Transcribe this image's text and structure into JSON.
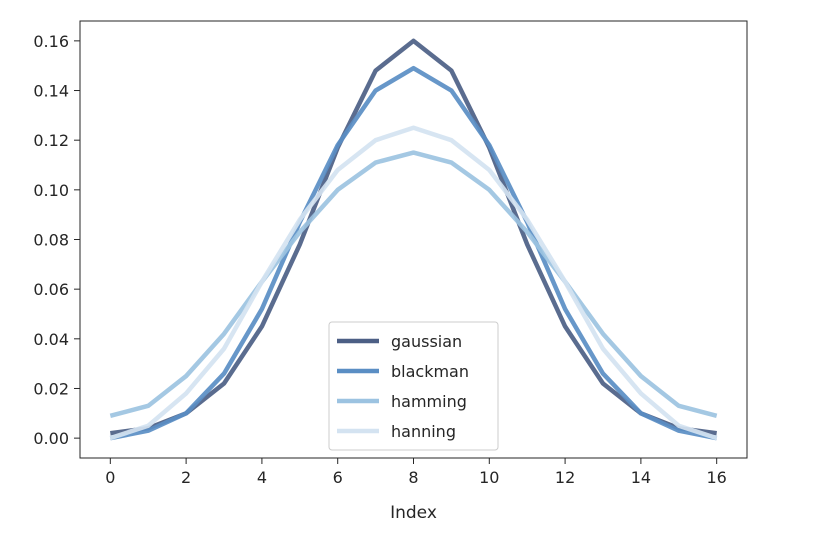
{
  "chart_data": {
    "type": "line",
    "title": "",
    "xlabel": "Index",
    "ylabel": "",
    "x": [
      0,
      1,
      2,
      3,
      4,
      5,
      6,
      7,
      8,
      9,
      10,
      11,
      12,
      13,
      14,
      15,
      16
    ],
    "xlim": [
      -0.8,
      16.8
    ],
    "ylim": [
      -0.008,
      0.168
    ],
    "xticks": [
      0,
      2,
      4,
      6,
      8,
      10,
      12,
      14,
      16
    ],
    "xtick_labels": [
      "0",
      "2",
      "4",
      "6",
      "8",
      "10",
      "12",
      "14",
      "16"
    ],
    "yticks": [
      0.0,
      0.02,
      0.04,
      0.06,
      0.08,
      0.1,
      0.12,
      0.14,
      0.16
    ],
    "ytick_labels": [
      "0.00",
      "0.02",
      "0.04",
      "0.06",
      "0.08",
      "0.10",
      "0.12",
      "0.14",
      "0.16"
    ],
    "grid": false,
    "legend_position": "bottom-center",
    "series": [
      {
        "name": "gaussian",
        "color": "#4c5f85",
        "values": [
          0.002,
          0.004,
          0.01,
          0.022,
          0.045,
          0.078,
          0.117,
          0.148,
          0.16,
          0.148,
          0.117,
          0.078,
          0.045,
          0.022,
          0.01,
          0.004,
          0.002
        ]
      },
      {
        "name": "blackman",
        "color": "#5a8ec4",
        "values": [
          0.0,
          0.003,
          0.01,
          0.026,
          0.052,
          0.087,
          0.118,
          0.14,
          0.149,
          0.14,
          0.118,
          0.087,
          0.052,
          0.026,
          0.01,
          0.003,
          0.0
        ]
      },
      {
        "name": "hamming",
        "color": "#9cc3e1",
        "values": [
          0.009,
          0.013,
          0.025,
          0.042,
          0.063,
          0.083,
          0.1,
          0.111,
          0.115,
          0.111,
          0.1,
          0.083,
          0.063,
          0.042,
          0.025,
          0.013,
          0.009
        ]
      },
      {
        "name": "hanning",
        "color": "#d4e3f1",
        "values": [
          0.0,
          0.005,
          0.018,
          0.036,
          0.063,
          0.088,
          0.108,
          0.12,
          0.125,
          0.12,
          0.108,
          0.088,
          0.063,
          0.036,
          0.018,
          0.005,
          0.0
        ]
      }
    ]
  }
}
